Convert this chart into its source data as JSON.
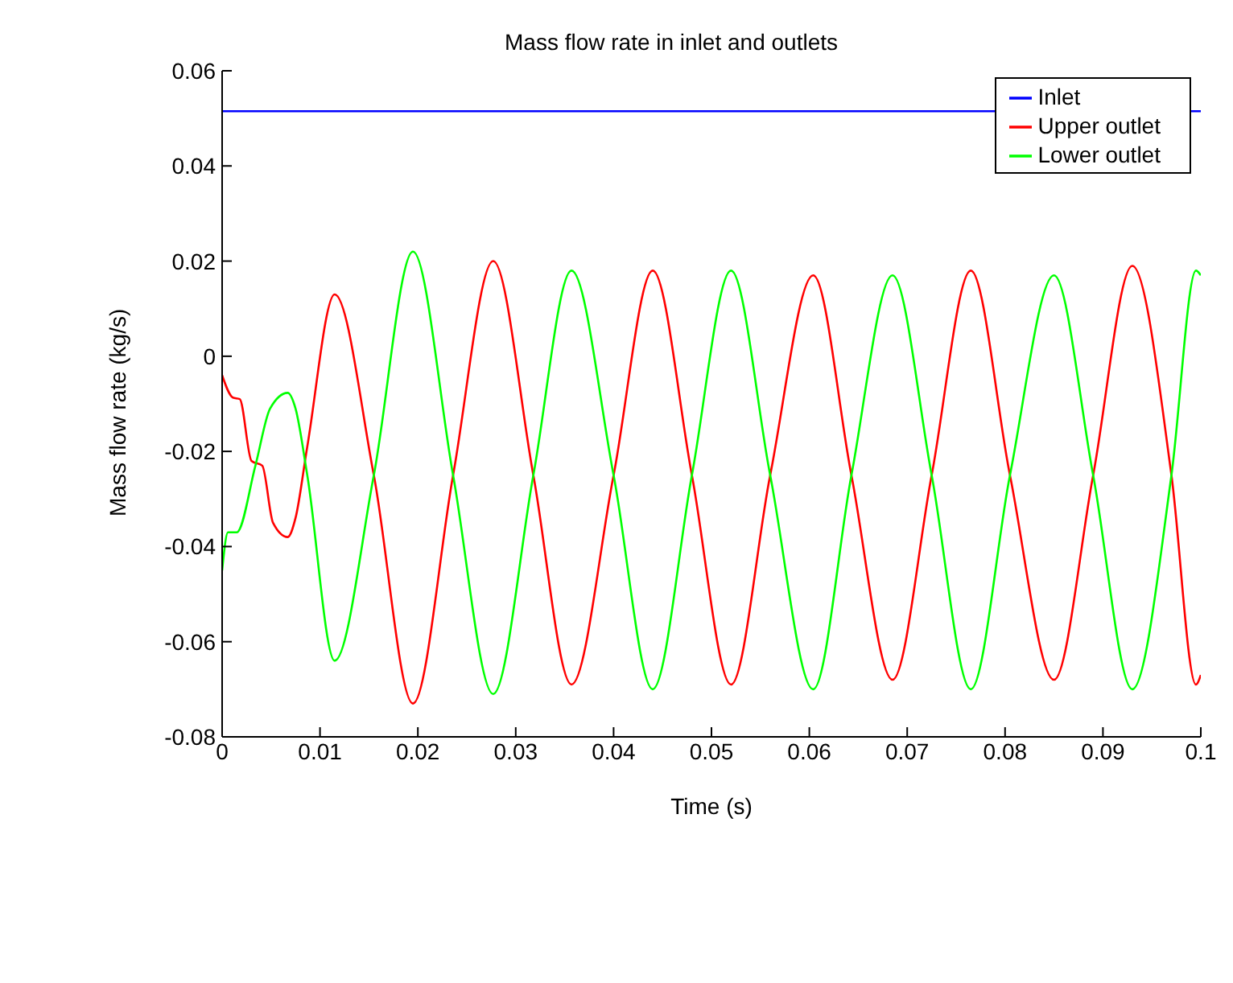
{
  "chart_data": {
    "type": "line",
    "title": "Mass flow rate in inlet and outlets",
    "xlabel": "Time (s)",
    "ylabel": "Mass flow rate (kg/s)",
    "xlim": [
      0,
      0.1
    ],
    "xticks": [
      0,
      0.01,
      0.02,
      0.03,
      0.04,
      0.05,
      0.06,
      0.07,
      0.08,
      0.09,
      0.1
    ],
    "ylim": [
      -0.08,
      0.06
    ],
    "yticks": [
      -0.08,
      -0.06,
      -0.04,
      -0.02,
      0,
      0.02,
      0.04,
      0.06
    ],
    "grid": false,
    "legend": "top right",
    "marker": "none",
    "line_style": "solid",
    "series": [
      {
        "name": "Inlet",
        "color": "#0000ff",
        "x": [
          0,
          0.1
        ],
        "values": [
          0.0515,
          0.0515
        ]
      },
      {
        "name": "Upper outlet",
        "color": "#ff0000",
        "x": [
          0,
          0.0011,
          0.0018,
          0.003,
          0.0041,
          0.0052,
          0.0067,
          0.0075,
          0.0087,
          0.0115,
          0.0155,
          0.0195,
          0.0236,
          0.0277,
          0.0318,
          0.0357,
          0.04,
          0.044,
          0.048,
          0.052,
          0.056,
          0.0604,
          0.0643,
          0.0685,
          0.0725,
          0.0765,
          0.0805,
          0.085,
          0.089,
          0.093,
          0.097,
          0.0995,
          0.1
        ],
        "values": [
          -0.004,
          -0.0087,
          -0.009,
          -0.022,
          -0.023,
          -0.035,
          -0.038,
          -0.034,
          -0.019,
          0.013,
          -0.025,
          -0.073,
          -0.025,
          0.02,
          -0.025,
          -0.069,
          -0.025,
          0.018,
          -0.025,
          -0.069,
          -0.025,
          0.017,
          -0.025,
          -0.068,
          -0.025,
          0.018,
          -0.025,
          -0.068,
          -0.025,
          0.019,
          -0.025,
          -0.069,
          -0.067
        ]
      },
      {
        "name": "Lower outlet",
        "color": "#00ff00",
        "x": [
          0,
          0.0006,
          0.0015,
          0.0034,
          0.0049,
          0.0067,
          0.0075,
          0.0087,
          0.0115,
          0.0155,
          0.0195,
          0.0236,
          0.0277,
          0.0318,
          0.0357,
          0.04,
          0.044,
          0.048,
          0.052,
          0.056,
          0.0604,
          0.0643,
          0.0685,
          0.0725,
          0.0765,
          0.0805,
          0.085,
          0.089,
          0.093,
          0.097,
          0.0995,
          0.1
        ],
        "values": [
          -0.045,
          -0.037,
          -0.037,
          -0.023,
          -0.011,
          -0.0077,
          -0.011,
          -0.025,
          -0.064,
          -0.025,
          0.022,
          -0.025,
          -0.071,
          -0.025,
          0.018,
          -0.025,
          -0.07,
          -0.025,
          0.018,
          -0.025,
          -0.07,
          -0.025,
          0.017,
          -0.025,
          -0.07,
          -0.025,
          0.017,
          -0.025,
          -0.07,
          -0.025,
          0.018,
          0.017
        ]
      }
    ]
  }
}
